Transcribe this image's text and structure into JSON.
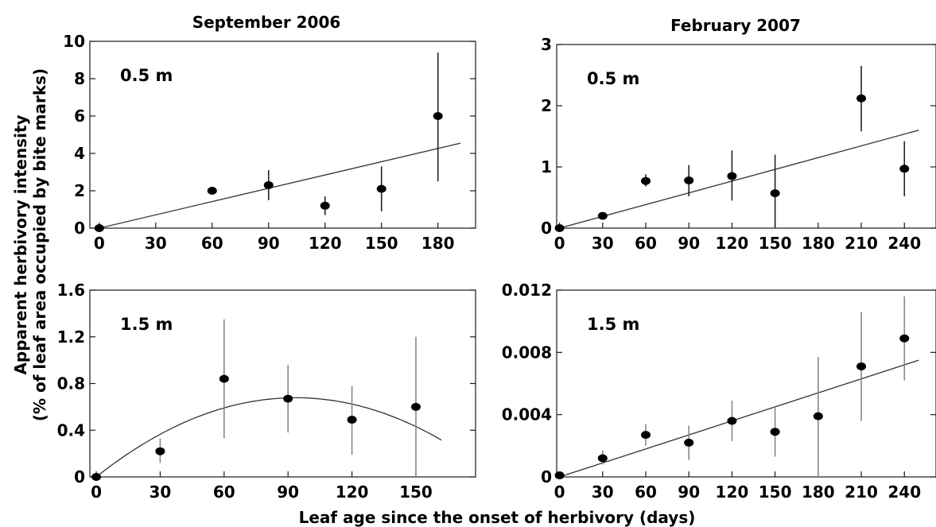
{
  "figure": {
    "col_titles": [
      "September 2006",
      "February 2007"
    ],
    "ylabel_line1": "Apparent herbivory intensity",
    "ylabel_line2": "(% of leaf area occupied by bite marks)",
    "xlabel": "Leaf age since the onset of herbivory (days)"
  },
  "chart_data": [
    {
      "type": "scatter",
      "title": "September 2006",
      "panel_label": "0.5 m",
      "xlim": [
        -5,
        200
      ],
      "ylim": [
        0,
        10
      ],
      "xticks": [
        0,
        30,
        60,
        90,
        120,
        150,
        180
      ],
      "yticks": [
        0,
        2,
        4,
        6,
        8,
        10
      ],
      "ytick_labels": [
        "0",
        "2",
        "4",
        "6",
        "8",
        "10"
      ],
      "points": [
        {
          "x": 0,
          "y": 0,
          "lo": 0,
          "hi": 0
        },
        {
          "x": 60,
          "y": 2.0,
          "lo": 1.8,
          "hi": 2.2
        },
        {
          "x": 90,
          "y": 2.3,
          "lo": 1.5,
          "hi": 3.1
        },
        {
          "x": 120,
          "y": 1.2,
          "lo": 0.7,
          "hi": 1.7
        },
        {
          "x": 150,
          "y": 2.1,
          "lo": 0.9,
          "hi": 3.3
        },
        {
          "x": 180,
          "y": 6.0,
          "lo": 2.5,
          "hi": 9.4
        }
      ],
      "fit": {
        "kind": "linear",
        "x": [
          0,
          192
        ],
        "y": [
          0,
          4.55
        ]
      }
    },
    {
      "type": "scatter",
      "title": "February 2007",
      "panel_label": "0.5 m",
      "xlim": [
        -2,
        262
      ],
      "ylim": [
        0,
        3
      ],
      "xticks": [
        0,
        30,
        60,
        90,
        120,
        150,
        180,
        210,
        240
      ],
      "yticks": [
        0,
        1,
        2,
        3
      ],
      "ytick_labels": [
        "0",
        "1",
        "2",
        "3"
      ],
      "points": [
        {
          "x": 0,
          "y": 0,
          "lo": 0,
          "hi": 0
        },
        {
          "x": 30,
          "y": 0.2,
          "lo": 0.17,
          "hi": 0.23
        },
        {
          "x": 60,
          "y": 0.77,
          "lo": 0.68,
          "hi": 0.88
        },
        {
          "x": 90,
          "y": 0.78,
          "lo": 0.52,
          "hi": 1.03
        },
        {
          "x": 120,
          "y": 0.85,
          "lo": 0.45,
          "hi": 1.27
        },
        {
          "x": 150,
          "y": 0.57,
          "lo": 0.0,
          "hi": 1.2
        },
        {
          "x": 210,
          "y": 2.12,
          "lo": 1.58,
          "hi": 2.65
        },
        {
          "x": 240,
          "y": 0.97,
          "lo": 0.52,
          "hi": 1.42
        }
      ],
      "fit": {
        "kind": "linear",
        "x": [
          0,
          250
        ],
        "y": [
          0,
          1.6
        ]
      }
    },
    {
      "type": "scatter",
      "title": "September 2006",
      "panel_label": "1.5 m",
      "xlim": [
        -3,
        178
      ],
      "ylim": [
        0,
        1.6
      ],
      "xticks": [
        0,
        30,
        60,
        90,
        120,
        150
      ],
      "yticks": [
        0,
        0.4,
        0.8,
        1.2,
        1.6
      ],
      "ytick_labels": [
        "0",
        "0.4",
        "0.8",
        "1.2",
        "1.6"
      ],
      "points": [
        {
          "x": 0,
          "y": 0,
          "lo": 0,
          "hi": 0
        },
        {
          "x": 30,
          "y": 0.22,
          "lo": 0.12,
          "hi": 0.33
        },
        {
          "x": 60,
          "y": 0.84,
          "lo": 0.33,
          "hi": 1.35
        },
        {
          "x": 90,
          "y": 0.67,
          "lo": 0.38,
          "hi": 0.96
        },
        {
          "x": 120,
          "y": 0.49,
          "lo": 0.19,
          "hi": 0.78
        },
        {
          "x": 150,
          "y": 0.6,
          "lo": 0.0,
          "hi": 1.2
        }
      ],
      "fit": {
        "kind": "quadratic",
        "coef": [
          0,
          0.0145,
          -7.75e-05
        ],
        "x_range": [
          0,
          162
        ]
      }
    },
    {
      "type": "scatter",
      "title": "February 2007",
      "panel_label": "1.5 m",
      "xlim": [
        -2,
        262
      ],
      "ylim": [
        0,
        0.012
      ],
      "xticks": [
        0,
        30,
        60,
        90,
        120,
        150,
        180,
        210,
        240
      ],
      "yticks": [
        0,
        0.004,
        0.008,
        0.012
      ],
      "ytick_labels": [
        "0",
        "0.004",
        "0.008",
        "0.012"
      ],
      "points": [
        {
          "x": 0,
          "y": 0.0001,
          "lo": 0.0001,
          "hi": 0.0001
        },
        {
          "x": 30,
          "y": 0.0012,
          "lo": 0.0008,
          "hi": 0.0017
        },
        {
          "x": 60,
          "y": 0.0027,
          "lo": 0.002,
          "hi": 0.0034
        },
        {
          "x": 90,
          "y": 0.0022,
          "lo": 0.0011,
          "hi": 0.0033
        },
        {
          "x": 120,
          "y": 0.0036,
          "lo": 0.0023,
          "hi": 0.0049
        },
        {
          "x": 150,
          "y": 0.0029,
          "lo": 0.0013,
          "hi": 0.0045
        },
        {
          "x": 180,
          "y": 0.0039,
          "lo": 0.0,
          "hi": 0.0077
        },
        {
          "x": 210,
          "y": 0.0071,
          "lo": 0.0036,
          "hi": 0.0106
        },
        {
          "x": 240,
          "y": 0.0089,
          "lo": 0.0062,
          "hi": 0.0116
        }
      ],
      "fit": {
        "kind": "linear",
        "x": [
          0,
          250
        ],
        "y": [
          0,
          0.0075
        ]
      }
    }
  ]
}
